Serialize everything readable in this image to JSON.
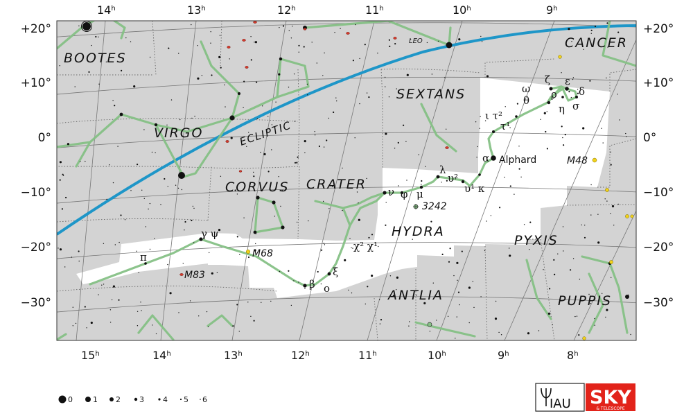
{
  "chart": {
    "ra_labels_top": [
      {
        "hour": "14",
        "unit": "h"
      },
      {
        "hour": "13",
        "unit": "h"
      },
      {
        "hour": "12",
        "unit": "h"
      },
      {
        "hour": "11",
        "unit": "h"
      },
      {
        "hour": "10",
        "unit": "h"
      },
      {
        "hour": "9",
        "unit": "h"
      }
    ],
    "ra_labels_bottom": [
      {
        "hour": "15",
        "unit": "h"
      },
      {
        "hour": "14",
        "unit": "h"
      },
      {
        "hour": "13",
        "unit": "h"
      },
      {
        "hour": "12",
        "unit": "h"
      },
      {
        "hour": "11",
        "unit": "h"
      },
      {
        "hour": "10",
        "unit": "h"
      },
      {
        "hour": "9",
        "unit": "h"
      },
      {
        "hour": "8",
        "unit": "h"
      }
    ],
    "dec_labels_left": [
      "+20°",
      "+10°",
      "0°",
      "−10°",
      "−20°",
      "−30°"
    ],
    "dec_labels_right": [
      "+20°",
      "+10°",
      "0°",
      "−10°",
      "−20°",
      "−30°"
    ],
    "constellation_names": {
      "bootes": "BOOTES",
      "cancer": "CANCER",
      "leo": "LEO",
      "sextans": "SEXTANS",
      "virgo": "VIRGO",
      "corvus": "CORVUS",
      "crater": "CRATER",
      "hydra": "HYDRA",
      "pyxis": "PYXIS",
      "antlia": "ANTLIA",
      "puppis": "PUPPIS"
    },
    "ecliptic_label": "ECLIPTIC",
    "star_labels": {
      "alpha": "α",
      "alphard": "Alphard",
      "zeta": "ζ",
      "epsilon": "ε",
      "delta": "δ",
      "omega": "ω",
      "rho": "ρ",
      "theta": "θ",
      "eta": "η",
      "sigma": "σ",
      "iota_tau2": "ι τ²",
      "tau1": "τ¹",
      "lambda": "λ",
      "upsilon2": "υ²",
      "upsilon1_kappa": "υ¹ κ",
      "nu": "ν",
      "phi": "φ",
      "mu": "μ",
      "chi2_chi1": "χ² χ¹",
      "xi": "ξ",
      "beta": "β",
      "omicron": "ο",
      "gamma_psi": "γ ψ",
      "pi": "π"
    },
    "deep_sky_labels": {
      "m48": "M48",
      "ngc3242": "3242",
      "m68": "M68",
      "m83": "M83"
    },
    "magnitude_legend": [
      "0",
      "1",
      "2",
      "3",
      "4",
      "5",
      "6"
    ],
    "logos": {
      "iau": "IAU",
      "sky": "SKY",
      "sky_sub": "& TELESCOPE"
    },
    "colors": {
      "sky_grey": "#d3d3d3",
      "hydra_highlight": "#ffffff",
      "stick_figure": "#86c186",
      "ecliptic": "#1e96c8",
      "grid": "#888888",
      "boundary": "#6a6a6a",
      "galaxy": "#d33a2c",
      "cluster": "#f2d21a",
      "sky_logo_red": "#e2231a"
    }
  }
}
